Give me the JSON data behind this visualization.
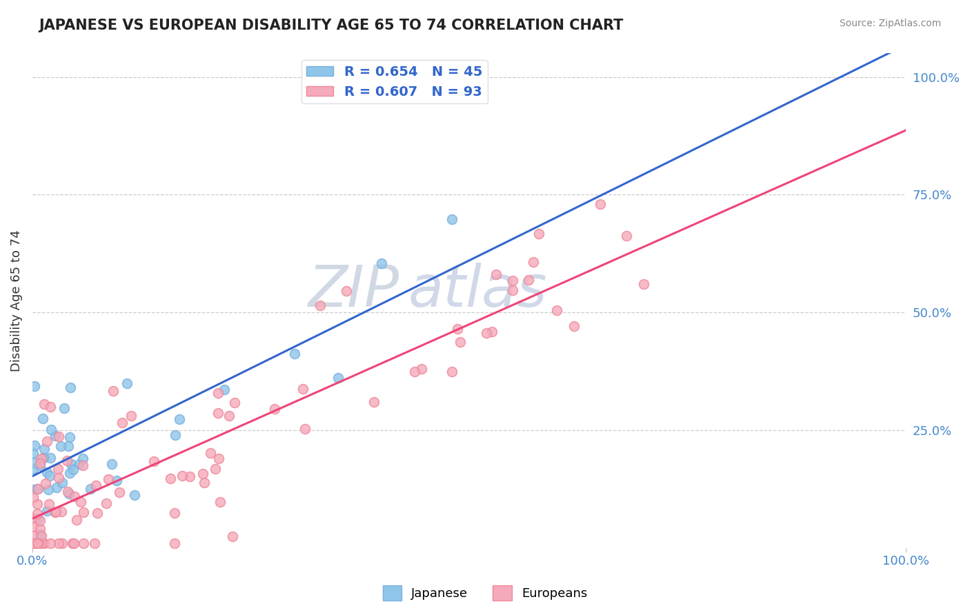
{
  "title": "JAPANESE VS EUROPEAN DISABILITY AGE 65 TO 74 CORRELATION CHART",
  "source": "Source: ZipAtlas.com",
  "ylabel": "Disability Age 65 to 74",
  "R_japanese": 0.654,
  "N_japanese": 45,
  "R_european": 0.607,
  "N_european": 93,
  "japanese_color": "#8EC5E8",
  "japanese_edge": "#7AAFE0",
  "european_color": "#F5AABB",
  "european_edge": "#EE8899",
  "trend_japanese_color": "#3366CC",
  "trend_european_color": "#EE4477",
  "background_color": "#FFFFFF",
  "grid_color": "#CCCCCC",
  "watermark_zip_color": "#BBCCDD",
  "watermark_atlas_color": "#AABBDD",
  "right_ytick_labels": [
    "25.0%",
    "50.0%",
    "75.0%",
    "100.0%"
  ],
  "right_ytick_values": [
    0.25,
    0.5,
    0.75,
    1.0
  ],
  "legend_japanese_label": "Japanese",
  "legend_european_label": "Europeans",
  "jp_intercept": 0.14,
  "jp_slope": 1.05,
  "eu_intercept": 0.05,
  "eu_slope": 0.88
}
